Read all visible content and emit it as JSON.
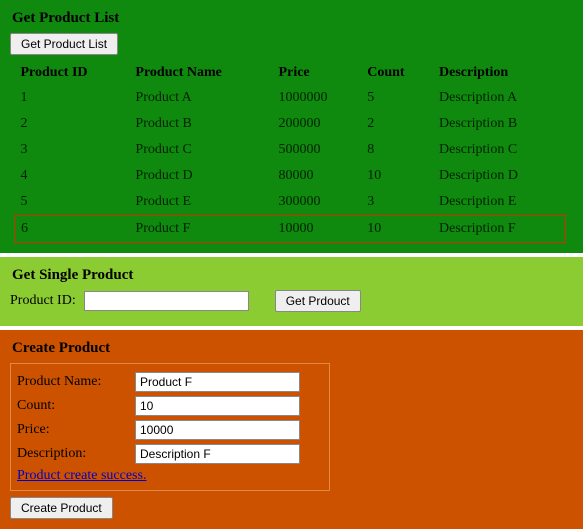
{
  "colors": {
    "panel_green": "#0f8a0f",
    "panel_lime": "#8ccc33",
    "panel_orange": "#cc5200",
    "highlight_border": "#cc3300",
    "form_border": "#e08a4a",
    "link": "#0000cc"
  },
  "list_panel": {
    "title": "Get Product List",
    "button_label": "Get Product List",
    "columns": [
      "Product ID",
      "Product Name",
      "Price",
      "Count",
      "Description"
    ],
    "rows": [
      {
        "id": "1",
        "name": "Product A",
        "price": "1000000",
        "count": "5",
        "desc": "Description A",
        "highlight": false
      },
      {
        "id": "2",
        "name": "Product B",
        "price": "200000",
        "count": "2",
        "desc": "Description B",
        "highlight": false
      },
      {
        "id": "3",
        "name": "Product C",
        "price": "500000",
        "count": "8",
        "desc": "Description C",
        "highlight": false
      },
      {
        "id": "4",
        "name": "Product D",
        "price": "80000",
        "count": "10",
        "desc": "Description D",
        "highlight": false
      },
      {
        "id": "5",
        "name": "Product E",
        "price": "300000",
        "count": "3",
        "desc": "Description E",
        "highlight": false
      },
      {
        "id": "6",
        "name": "Product F",
        "price": "10000",
        "count": "10",
        "desc": "Description F",
        "highlight": true
      }
    ]
  },
  "single_panel": {
    "title": "Get Single Product",
    "label": "Product ID:",
    "input_value": "",
    "button_label": "Get Prdouct"
  },
  "create_panel": {
    "title": "Create Product",
    "fields": {
      "name": {
        "label": "Product Name:",
        "value": "Product F"
      },
      "count": {
        "label": "Count:",
        "value": "10"
      },
      "price": {
        "label": "Price:",
        "value": "10000"
      },
      "desc": {
        "label": "Description:",
        "value": "Description F"
      }
    },
    "status_text": "Product create success.",
    "button_label": "Create Product"
  }
}
